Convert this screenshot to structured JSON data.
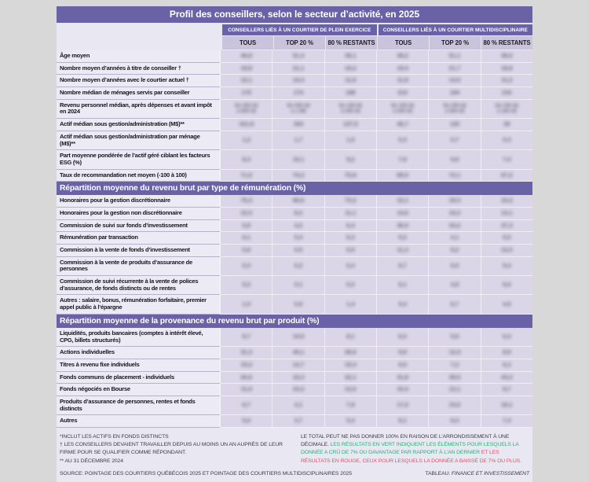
{
  "title": "Profil des conseillers, selon le secteur d’activité, en 2025",
  "header": {
    "groups": [
      "CONSEILLERS LIÉS À UN COURTIER DE PLEIN EXERCICE",
      "CONSEILLERS LIÉS À UN COURTIER MULTIDISCIPLINAIRE"
    ],
    "subcolumns": [
      "TOUS",
      "TOP 20 %",
      "80 % RESTANTS",
      "TOUS",
      "TOP 20 %",
      "80 % RESTANTS"
    ]
  },
  "cells_blurred_in_source": true,
  "sections": [
    {
      "header": "",
      "rows": [
        {
          "label": "Âge moyen",
          "values": [
            "49,8",
            "51,4",
            "49,1",
            "48,2",
            "51,1",
            "48,0"
          ]
        },
        {
          "label": "Nombre moyen d’années à titre de conseiller †",
          "values": [
            "19,8",
            "21,1",
            "19,2",
            "19,4",
            "21,7",
            "18,8"
          ]
        },
        {
          "label": "Nombre moyen d’années avec le courtier actuel †",
          "values": [
            "12,1",
            "14,3",
            "11,9",
            "11,8",
            "14,0",
            "11,2"
          ]
        },
        {
          "label": "Nombre médian de ménages servis par conseiller",
          "values": [
            "170",
            "174",
            "188",
            "210",
            "194",
            "216"
          ]
        },
        {
          "label": "Revenu personnel médian, après dépenses et avant impôt en 2024",
          "values": [
            "De 250 k$\nà 500 k$",
            "De 500 k$\nà 1 M$",
            "De 150 k$\nà 250 k$",
            "De 150 k$\nà 250 k$",
            "De 250 k$\nà 500 k$",
            "De 100 k$\nà 150 k$"
          ]
        },
        {
          "label": "Actif médian sous gestion/administration (M$)**",
          "values": [
            "161,9",
            "320",
            "137,5",
            "46,7",
            "120",
            "39"
          ]
        },
        {
          "label": "Actif médian sous gestion/administration par ménage (M$)**",
          "values": [
            "1,2",
            "1,7",
            "1,0",
            "0,4",
            "0,7",
            "0,3"
          ]
        },
        {
          "label": "Part moyenne pondérée de l’actif géré ciblant les facteurs ESG (%)",
          "values": [
            "9,3",
            "10,1",
            "9,2",
            "7,9",
            "9,8",
            "7,4"
          ]
        },
        {
          "label": "Taux de recommandation net  moyen (-100 à 100)",
          "values": [
            "71,6",
            "74,3",
            "70,8",
            "68,5",
            "72,1",
            "67,2"
          ]
        }
      ]
    },
    {
      "header": "Répartition moyenne du revenu brut par type de rémunération (%)",
      "rows": [
        {
          "label": "Honoraires pour la gestion discrétionnaire",
          "values": [
            "75,4",
            "80,6",
            "73,2",
            "12,1",
            "18,3",
            "10,2"
          ]
        },
        {
          "label": "Honoraires pour la gestion non discrétionnaire",
          "values": [
            "10,3",
            "8,2",
            "11,1",
            "14,6",
            "16,2",
            "14,1"
          ]
        },
        {
          "label": "Commission de suivi sur fonds d’investissement",
          "values": [
            "5,8",
            "4,2",
            "6,4",
            "36,5",
            "34,2",
            "37,3"
          ]
        },
        {
          "label": "Rémunération par transaction",
          "values": [
            "6,1",
            "5,4",
            "6,3",
            "5,2",
            "4,1",
            "5,5"
          ]
        },
        {
          "label": "Commission à la vente de fonds d’investissement",
          "values": [
            "0,8",
            "0,5",
            "0,9",
            "11,3",
            "9,2",
            "12,0"
          ]
        },
        {
          "label": "Commission à la vente de produits d’assurance de personnes",
          "values": [
            "0,3",
            "0,2",
            "0,4",
            "8,7",
            "6,5",
            "9,4"
          ]
        },
        {
          "label": "Commission de suivi récurrente à la vente de polices d’assurance, de fonds distincts ou de rentes",
          "values": [
            "0,2",
            "0,1",
            "0,2",
            "6,1",
            "4,8",
            "6,6"
          ]
        },
        {
          "label": "Autres : salaire, bonus, rémunération forfaitaire, premier appel public à l’épargne",
          "values": [
            "1,0",
            "0,8",
            "1,4",
            "5,4",
            "6,7",
            "4,9"
          ]
        }
      ]
    },
    {
      "header": "Répartition moyenne de la provenance du revenu brut par produit (%)",
      "rows": [
        {
          "label": "Liquidités, produits bancaires (comptes à intérêt élevé, CPG, billets structurés)",
          "values": [
            "8,7",
            "10,9",
            "8,1",
            "6,2",
            "5,8",
            "6,4"
          ]
        },
        {
          "label": "Actions individuelles",
          "values": [
            "31,3",
            "40,1",
            "28,6",
            "9,8",
            "12,4",
            "8,9"
          ]
        },
        {
          "label": "Titres à revenu fixe individuels",
          "values": [
            "15,2",
            "14,7",
            "15,4",
            "6,5",
            "7,2",
            "6,3"
          ]
        },
        {
          "label": "Fonds communs de placement - individuels",
          "values": [
            "20,6",
            "16,3",
            "22,1",
            "41,8",
            "38,5",
            "43,2"
          ]
        },
        {
          "label": "Fonds négociés en Bourse",
          "values": [
            "11,9",
            "10,2",
            "12,6",
            "10,4",
            "12,1",
            "9,7"
          ]
        },
        {
          "label": "Produits d’assurance de personnes, rentes et fonds distincts",
          "values": [
            "6,7",
            "4,1",
            "7,8",
            "17,2",
            "15,6",
            "18,1"
          ]
        },
        {
          "label": "Autres",
          "values": [
            "5,6",
            "3,7",
            "5,4",
            "8,1",
            "8,4",
            "7,4"
          ]
        }
      ]
    }
  ],
  "footnotes": {
    "left": [
      "*INCLUT LES ACTIFS EN FONDS DISTINCTS",
      "† LES CONSEILLERS DEVAIENT TRAVAILLER DEPUIS AU MOINS UN AN AUPRÈS DE LEUR FIRME POUR SE QUALIFIER COMME RÉPONDANT.",
      "** AU 31 DÉCEMBRE 2024"
    ],
    "right_plain": "LE TOTAL PEUT NE PAS DONNER 100% EN RAISON DE L’ARRONDISSEMENT À UNE DÉCIMALE.",
    "right_green": "LES RÉSULTATS EN VERT INDIQUENT LES ÉLÉMENTS POUR LESQUELS LA DONNÉE A CRÛ DE 7% OU DAVANTAGE PAR RAPPORT À L’AN DERNIER",
    "right_red": " ET LES RÉSULTATS EN ROUGE, CEUX POUR LESQUELS LA DONNÉE A BAISSÉ DE 7% OU PLUS."
  },
  "source": "SOURCE: POINTAGE DES COURTIERS QUÉBÉCOIS 2025 ET POINTAGE DES COURTIERS MULTIDISCIPLINAIRES 2025",
  "credit_prefix": "TABLEAU: ",
  "credit_name": "FINANCE ET INVESTISSEMENT",
  "colors": {
    "purple": "#6a62a7",
    "subheader": "#c9c4dc",
    "green": "#2fae7c",
    "red": "#e84f68"
  }
}
